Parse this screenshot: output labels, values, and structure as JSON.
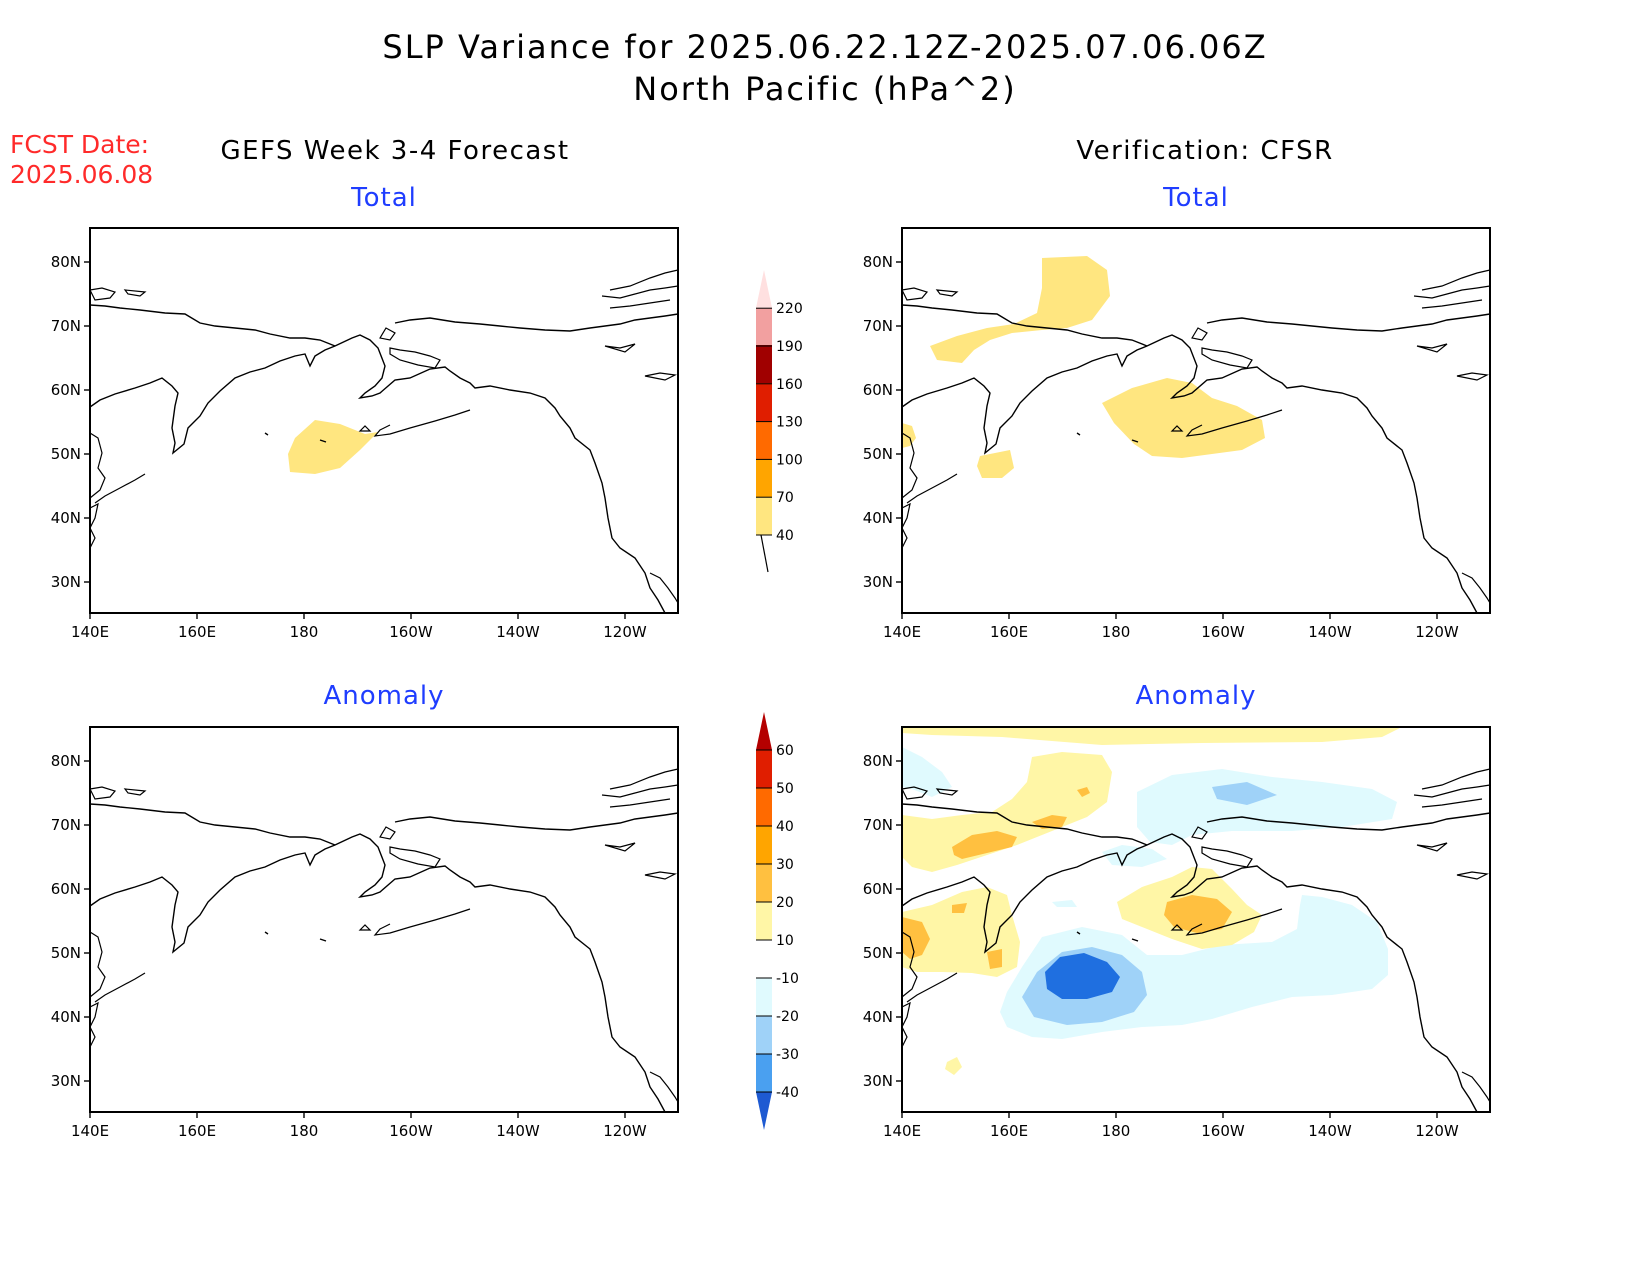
{
  "title_line1": "SLP Variance for 2025.06.22.12Z-2025.07.06.06Z",
  "title_line2": "North Pacific (hPa^2)",
  "fcst_label": "FCST Date:",
  "fcst_date": "2025.06.08",
  "left_column": "GEFS Week 3-4 Forecast",
  "right_column": "Verification: CFSR",
  "panels": [
    {
      "title": "Total"
    },
    {
      "title": "Total"
    },
    {
      "title": "Anomaly"
    },
    {
      "title": "Anomaly"
    }
  ],
  "axes": {
    "lon_ticks": [
      "140E",
      "160E",
      "180",
      "160W",
      "140W",
      "120W"
    ],
    "lat_ticks": [
      "80N",
      "70N",
      "60N",
      "50N",
      "40N",
      "30N"
    ],
    "lon_range_deg": [
      140,
      250
    ],
    "lat_range_deg": [
      25,
      85
    ]
  },
  "colorbar_total": {
    "levels": [
      "40",
      "70",
      "100",
      "130",
      "160",
      "190",
      "220"
    ],
    "colors": [
      "#ffe680",
      "#ffa500",
      "#ff6a00",
      "#e01e00",
      "#a00000",
      "#f2a0a0",
      "#ffe0e0"
    ]
  },
  "colorbar_anomaly": {
    "levels": [
      "60",
      "50",
      "40",
      "30",
      "20",
      "10",
      "-10",
      "-20",
      "-30",
      "-40"
    ],
    "colors": [
      "#b40000",
      "#e01e00",
      "#ff6a00",
      "#ffa500",
      "#ffc040",
      "#fff6a6",
      "#ffffff",
      "#e0fafe",
      "#9fd2f8",
      "#4aa0f0",
      "#1f6fe0",
      "#1e5ad2"
    ]
  },
  "colors": {
    "title_red": "#ff2a2a",
    "panel_title_blue": "#1f3dff"
  }
}
